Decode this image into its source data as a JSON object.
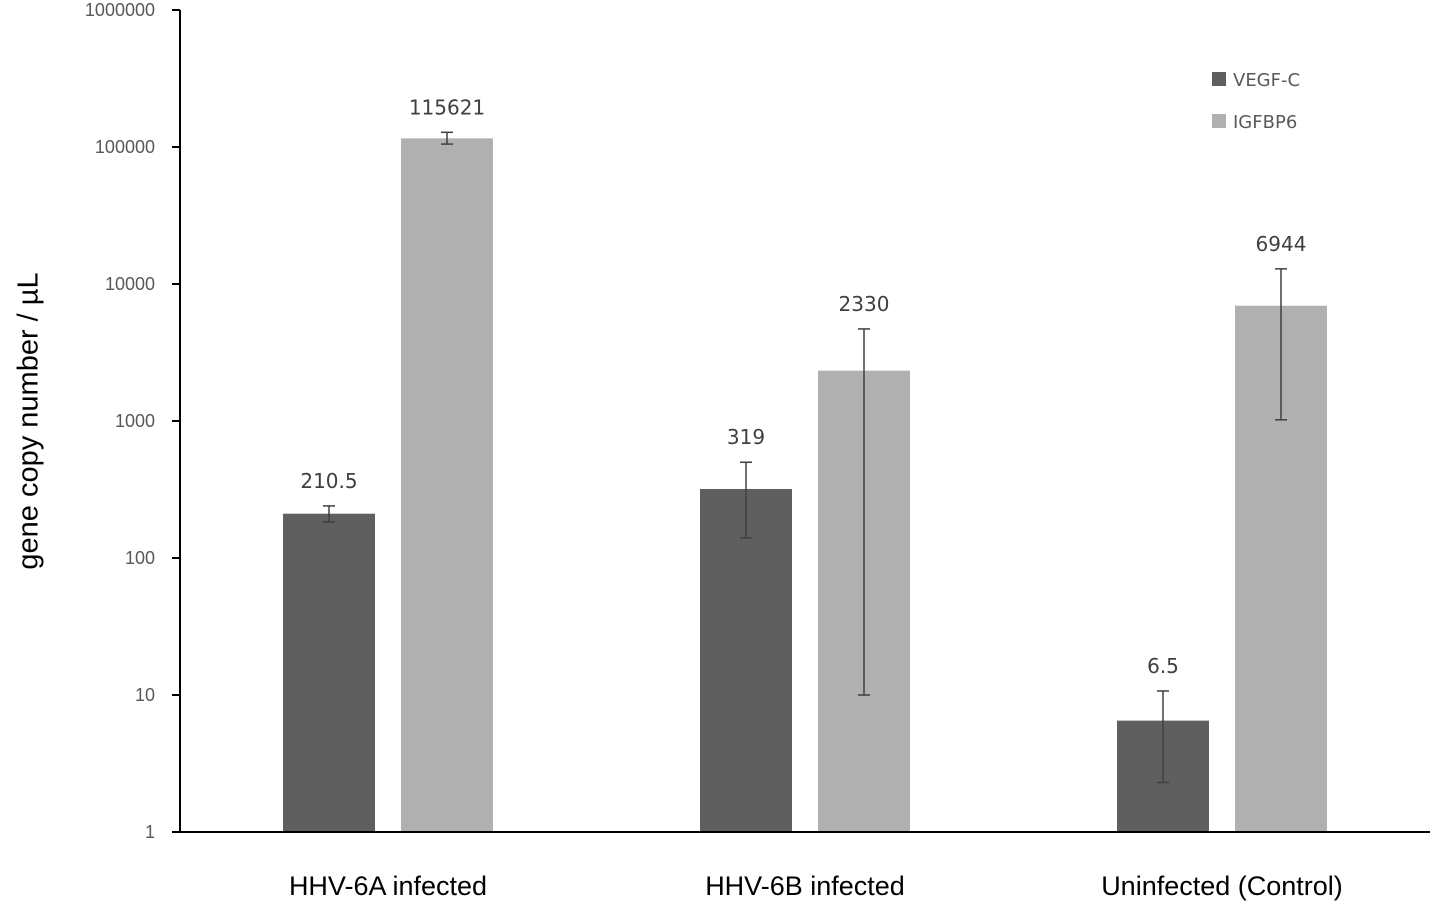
{
  "chart_data": {
    "type": "bar",
    "title": "",
    "xlabel": "",
    "ylabel": "gene copy number / µL",
    "yscale": "log",
    "ylim": [
      1,
      1000000
    ],
    "yticks": [
      "1",
      "10",
      "100",
      "1000",
      "10000",
      "100000",
      "1000000"
    ],
    "categories": [
      "HHV-6A infected",
      "HHV-6B infected",
      "Uninfected (Control)"
    ],
    "legend_position": "top-right",
    "grid": false,
    "series": [
      {
        "name": "VEGF-C",
        "color": "#5f5f5f",
        "values": [
          210.5,
          319,
          6.5
        ],
        "labels": [
          "210.5",
          "319",
          "6.5"
        ],
        "error_low": [
          183,
          140,
          2.3
        ],
        "error_high": [
          240,
          500,
          10.7
        ]
      },
      {
        "name": "IGFBP6",
        "color": "#b0b0b0",
        "values": [
          115621,
          2330,
          6944
        ],
        "labels": [
          "115621",
          "2330",
          "6944"
        ],
        "error_low": [
          105000,
          10,
          1020
        ],
        "error_high": [
          128000,
          4700,
          12900
        ]
      }
    ]
  }
}
